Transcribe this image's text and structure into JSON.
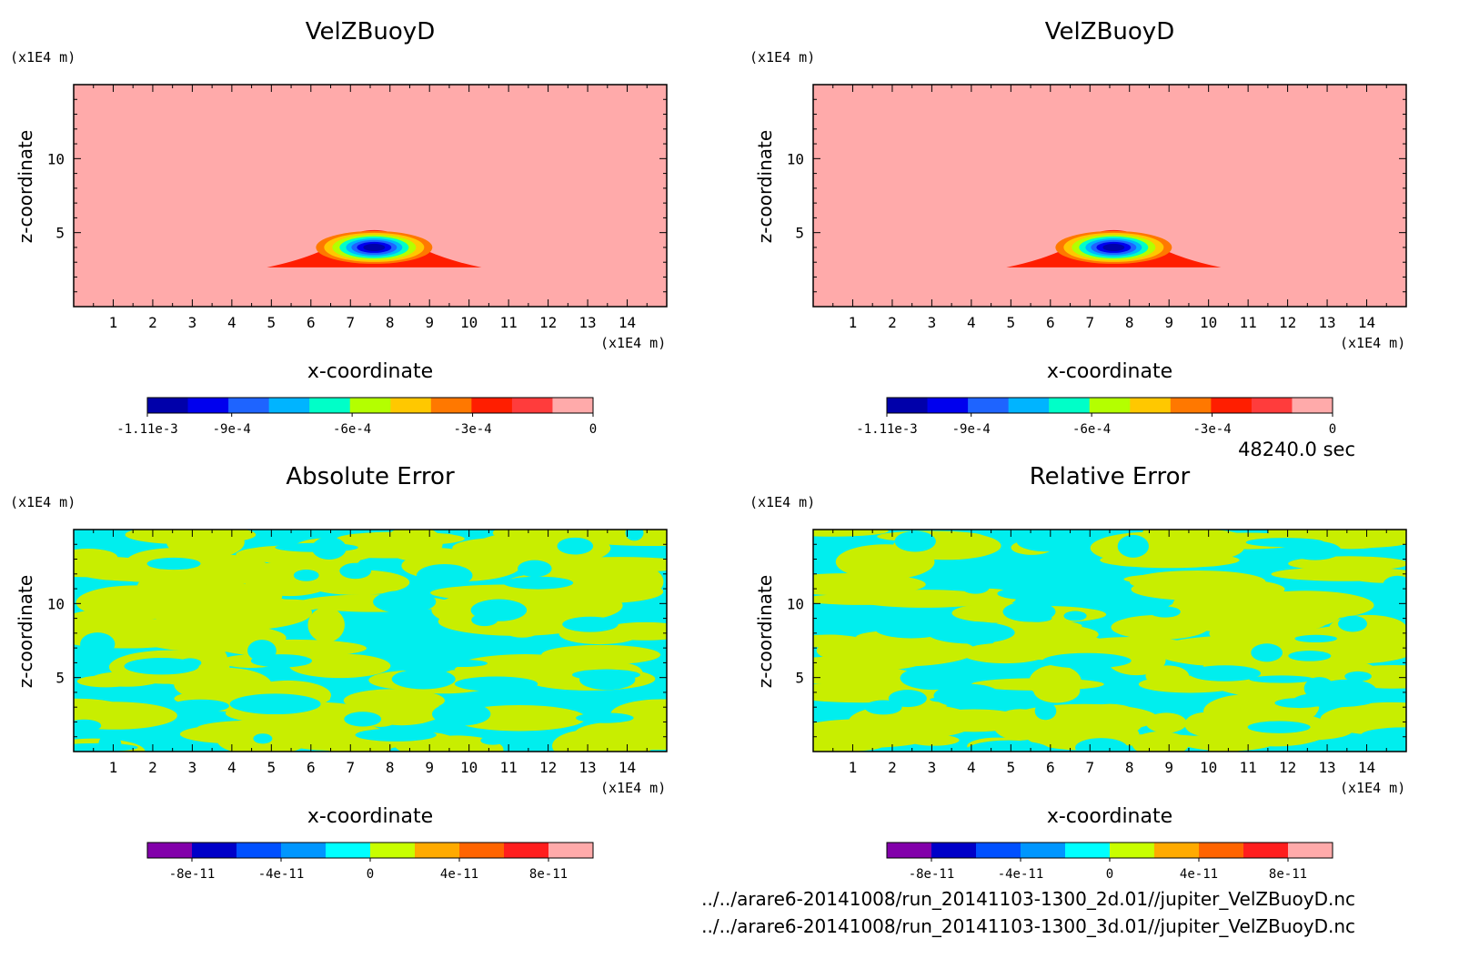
{
  "figure": {
    "time_label": "48240.0 sec",
    "file_lines": [
      "../../arare6-20141008/run_20141103-1300_2d.01//jupiter_VelZBuoyD.nc",
      "../../arare6-20141008/run_20141103-1300_3d.01//jupiter_VelZBuoyD.nc"
    ]
  },
  "chart_data": [
    {
      "type": "heatmap",
      "title": "VelZBuoyD",
      "xlabel": "x-coordinate",
      "ylabel": "z-coordinate",
      "x_unit": "(x1E4 m)",
      "y_unit": "(x1E4 m)",
      "xlim": [
        0,
        15
      ],
      "ylim": [
        0,
        15
      ],
      "x_ticks": [
        1,
        2,
        3,
        4,
        5,
        6,
        7,
        8,
        9,
        10,
        11,
        12,
        13,
        14
      ],
      "y_ticks": [
        5,
        10
      ],
      "colorbar": {
        "colors": [
          "#0000aa",
          "#0000ee",
          "#1e64ff",
          "#00b4ff",
          "#00ffc8",
          "#b4ff00",
          "#ffc800",
          "#ff7800",
          "#ff1e00",
          "#ff3c3c",
          "#ffaaaa"
        ],
        "tick_labels": [
          "-1.11e-3",
          "-9e-4",
          "-6e-4",
          "-3e-4",
          "0"
        ],
        "tick_values": [
          -0.00111,
          -0.0009,
          -0.0006,
          -0.0003,
          0
        ],
        "range": [
          -0.00111,
          0
        ]
      },
      "feature": {
        "description_center_x": 7.6,
        "center_z": 4.0,
        "min_value": -0.00111,
        "background_value": 0
      }
    },
    {
      "type": "heatmap",
      "title": "VelZBuoyD",
      "xlabel": "x-coordinate",
      "ylabel": "z-coordinate",
      "x_unit": "(x1E4 m)",
      "y_unit": "(x1E4 m)",
      "xlim": [
        0,
        15
      ],
      "ylim": [
        0,
        15
      ],
      "x_ticks": [
        1,
        2,
        3,
        4,
        5,
        6,
        7,
        8,
        9,
        10,
        11,
        12,
        13,
        14
      ],
      "y_ticks": [
        5,
        10
      ],
      "colorbar": {
        "colors": [
          "#0000aa",
          "#0000ee",
          "#1e64ff",
          "#00b4ff",
          "#00ffc8",
          "#b4ff00",
          "#ffc800",
          "#ff7800",
          "#ff1e00",
          "#ff3c3c",
          "#ffaaaa"
        ],
        "tick_labels": [
          "-1.11e-3",
          "-9e-4",
          "-6e-4",
          "-3e-4",
          "0"
        ],
        "tick_values": [
          -0.00111,
          -0.0009,
          -0.0006,
          -0.0003,
          0
        ],
        "range": [
          -0.00111,
          0
        ]
      },
      "feature": {
        "description_center_x": 7.6,
        "center_z": 4.0,
        "min_value": -0.00111,
        "background_value": 0
      }
    },
    {
      "type": "heatmap",
      "title": "Absolute Error",
      "xlabel": "x-coordinate",
      "ylabel": "z-coordinate",
      "x_unit": "(x1E4 m)",
      "y_unit": "(x1E4 m)",
      "xlim": [
        0,
        15
      ],
      "ylim": [
        0,
        15
      ],
      "x_ticks": [
        1,
        2,
        3,
        4,
        5,
        6,
        7,
        8,
        9,
        10,
        11,
        12,
        13,
        14
      ],
      "y_ticks": [
        5,
        10
      ],
      "colorbar": {
        "colors": [
          "#8200aa",
          "#0000c8",
          "#0050ff",
          "#0096ff",
          "#00ffff",
          "#c8ff00",
          "#ffaa00",
          "#ff6400",
          "#ff1e1e",
          "#ffaaaa"
        ],
        "tick_labels": [
          "-8e-11",
          "-4e-11",
          "0",
          "4e-11",
          "8e-11"
        ],
        "tick_values": [
          -8e-11,
          -4e-11,
          0,
          4e-11,
          8e-11
        ],
        "range": [
          -1e-10,
          1e-10
        ]
      },
      "field_colors": [
        "#00eeee",
        "#c8ee00"
      ]
    },
    {
      "type": "heatmap",
      "title": "Relative Error",
      "xlabel": "x-coordinate",
      "ylabel": "z-coordinate",
      "x_unit": "(x1E4 m)",
      "y_unit": "(x1E4 m)",
      "xlim": [
        0,
        15
      ],
      "ylim": [
        0,
        15
      ],
      "x_ticks": [
        1,
        2,
        3,
        4,
        5,
        6,
        7,
        8,
        9,
        10,
        11,
        12,
        13,
        14
      ],
      "y_ticks": [
        5,
        10
      ],
      "colorbar": {
        "colors": [
          "#8200aa",
          "#0000c8",
          "#0050ff",
          "#0096ff",
          "#00ffff",
          "#c8ff00",
          "#ffaa00",
          "#ff6400",
          "#ff1e1e",
          "#ffaaaa"
        ],
        "tick_labels": [
          "-8e-11",
          "-4e-11",
          "0",
          "4e-11",
          "8e-11"
        ],
        "tick_values": [
          -8e-11,
          -4e-11,
          0,
          4e-11,
          8e-11
        ],
        "range": [
          -1e-10,
          1e-10
        ]
      },
      "field_colors": [
        "#00eeee",
        "#c8ee00"
      ]
    }
  ]
}
